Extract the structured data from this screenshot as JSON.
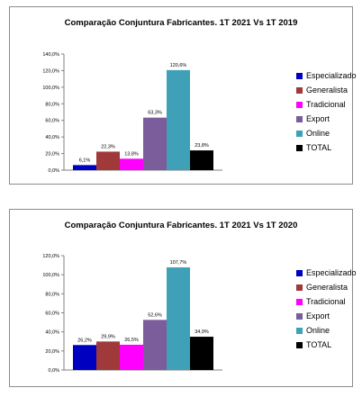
{
  "chart_data": [
    {
      "type": "bar",
      "title": "Comparação Conjuntura Fabricantes. 1T 2021 Vs 1T 2019",
      "yticks": [
        "0,0%",
        "20,0%",
        "40,0%",
        "60,0%",
        "80,0%",
        "100,0%",
        "120,0%",
        "140,0%"
      ],
      "ylim": [
        0,
        140
      ],
      "grid": false,
      "legend_position": "right",
      "series": [
        {
          "name": "Especializado",
          "values": [
            6.1
          ],
          "label": "6,1%",
          "color": "#0000c0"
        },
        {
          "name": "Generalista",
          "values": [
            22.3
          ],
          "label": "22,3%",
          "color": "#a0393a"
        },
        {
          "name": "Tradicional",
          "values": [
            13.8
          ],
          "label": "13,8%",
          "color": "#ff00ff"
        },
        {
          "name": "Export",
          "values": [
            63.3
          ],
          "label": "63,3%",
          "color": "#7b5d9c"
        },
        {
          "name": "Online",
          "values": [
            120.6
          ],
          "label": "120,6%",
          "color": "#3fa1b8"
        },
        {
          "name": "TOTAL",
          "values": [
            23.8
          ],
          "label": "23,8%",
          "color": "#000000"
        }
      ]
    },
    {
      "type": "bar",
      "title": "Comparação Conjuntura Fabricantes. 1T 2021 Vs 1T 2020",
      "yticks": [
        "0,0%",
        "20,0%",
        "40,0%",
        "60,0%",
        "80,0%",
        "100,0%",
        "120,0%"
      ],
      "ylim": [
        0,
        120
      ],
      "grid": false,
      "legend_position": "right",
      "series": [
        {
          "name": "Especializado",
          "values": [
            26.2
          ],
          "label": "26,2%",
          "color": "#0000c0"
        },
        {
          "name": "Generalista",
          "values": [
            29.9
          ],
          "label": "29,9%",
          "color": "#a0393a"
        },
        {
          "name": "Tradicional",
          "values": [
            26.5
          ],
          "label": "26,5%",
          "color": "#ff00ff"
        },
        {
          "name": "Export",
          "values": [
            52.6
          ],
          "label": "52,6%",
          "color": "#7b5d9c"
        },
        {
          "name": "Online",
          "values": [
            107.7
          ],
          "label": "107,7%",
          "color": "#3fa1b8"
        },
        {
          "name": "TOTAL",
          "values": [
            34.9
          ],
          "label": "34,9%",
          "color": "#000000"
        }
      ]
    }
  ]
}
